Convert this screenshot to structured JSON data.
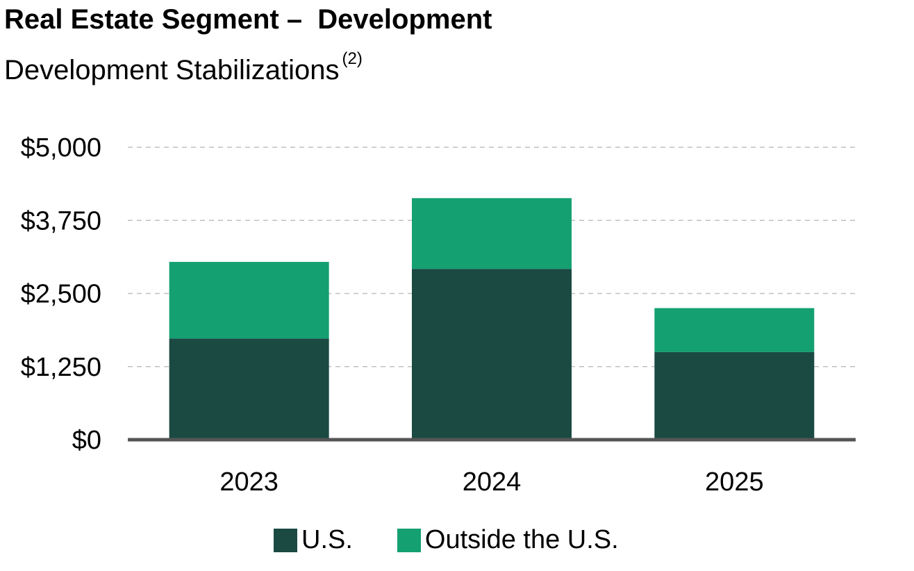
{
  "title": "Real Estate Segment –  Development",
  "subtitle": "Development Stabilizations",
  "subtitle_note": "(2)",
  "colors": {
    "us": "#1a4a42",
    "outside": "#14a071",
    "grid": "#c0c0c0",
    "axis": "#555555"
  },
  "chart_data": {
    "type": "bar",
    "stacked": true,
    "title": "Real Estate Segment –  Development",
    "subtitle": "Development Stabilizations",
    "categories": [
      "2023",
      "2024",
      "2025"
    ],
    "series": [
      {
        "name": "U.S.",
        "values": [
          1730,
          2920,
          1500
        ]
      },
      {
        "name": "Outside the U.S.",
        "values": [
          1310,
          1210,
          750
        ]
      }
    ],
    "ylim": [
      0,
      5000
    ],
    "yticks": [
      0,
      1250,
      2500,
      3750,
      5000
    ],
    "ytick_labels": [
      "$0",
      "$1,250",
      "$2,500",
      "$3,750",
      "$5,000"
    ],
    "xlabel": "",
    "ylabel": "",
    "grid": true,
    "legend_position": "bottom"
  }
}
